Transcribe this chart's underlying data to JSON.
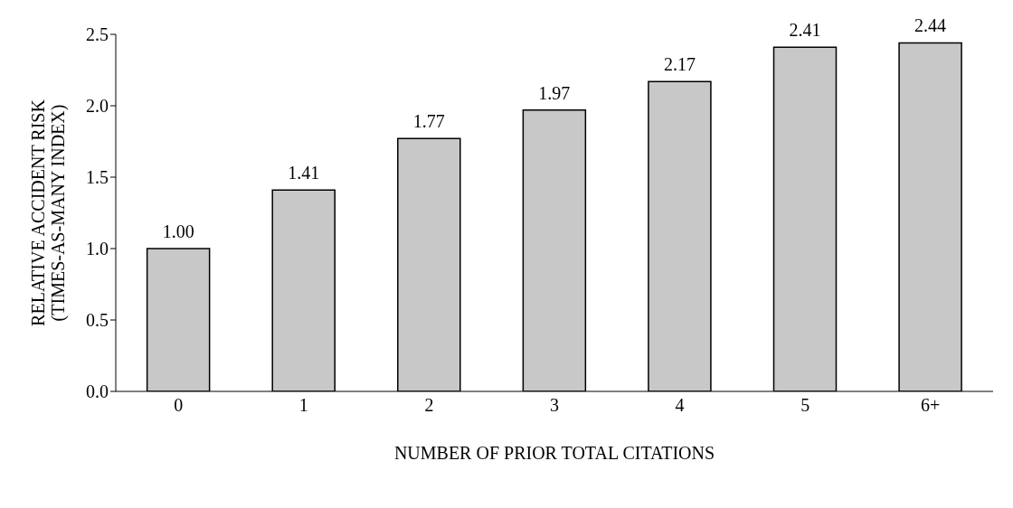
{
  "chart_data": {
    "type": "bar",
    "xlabel": "NUMBER OF PRIOR TOTAL CITATIONS",
    "ylabel": "RELATIVE ACCIDENT RISK\n(TIMES-AS-MANY INDEX)",
    "categories": [
      "0",
      "1",
      "2",
      "3",
      "4",
      "5",
      "6+"
    ],
    "values": [
      1.0,
      1.41,
      1.77,
      1.97,
      2.17,
      2.41,
      2.44
    ],
    "value_labels": [
      "1.00",
      "1.41",
      "1.77",
      "1.97",
      "2.17",
      "2.41",
      "2.44"
    ],
    "color": "#c8c8c8",
    "ylim": [
      0,
      2.5
    ],
    "yticks": [
      {
        "value": 0,
        "label": "0.0"
      },
      {
        "value": 0.5,
        "label": "0.5"
      },
      {
        "value": 1,
        "label": "1.0"
      },
      {
        "value": 1.5,
        "label": "1.5"
      },
      {
        "value": 2,
        "label": "2.0"
      },
      {
        "value": 2.5,
        "label": "2.5"
      }
    ],
    "grid": false
  }
}
